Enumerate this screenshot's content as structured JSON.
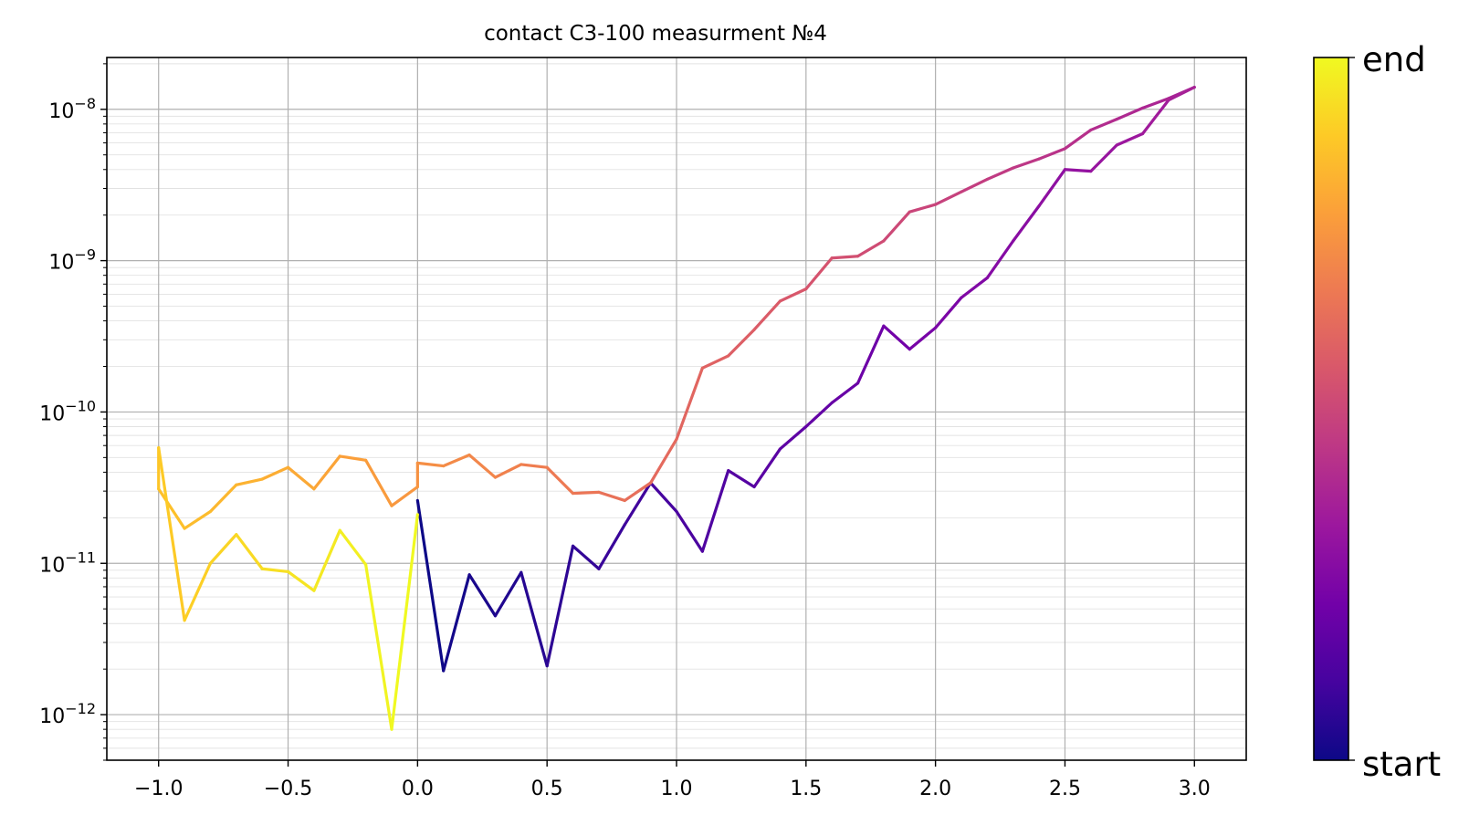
{
  "chart_data": {
    "type": "line",
    "title": "contact C3-100 measurment №4",
    "xlabel": "",
    "ylabel": "",
    "xlim": [
      -1.2,
      3.2
    ],
    "ylim": [
      5e-13,
      2.2e-08
    ],
    "y_scale": "log",
    "grid": "on (major and minor)",
    "x_ticks": [
      -1.0,
      -0.5,
      0.0,
      0.5,
      1.0,
      1.5,
      2.0,
      2.5,
      3.0
    ],
    "x_tick_labels": [
      "−1.0",
      "−0.5",
      "0.0",
      "0.5",
      "1.0",
      "1.5",
      "2.0",
      "2.5",
      "3.0"
    ],
    "y_ticks": [
      {
        "value": 1e-12,
        "base": "10",
        "exp": "−12"
      },
      {
        "value": 1e-11,
        "base": "10",
        "exp": "−11"
      },
      {
        "value": 1e-10,
        "base": "10",
        "exp": "−10"
      },
      {
        "value": 1e-09,
        "base": "10",
        "exp": "−9"
      },
      {
        "value": 1e-08,
        "base": "10",
        "exp": "−8"
      }
    ],
    "colormap": "plasma",
    "colorbar": {
      "top_label": "end",
      "bottom_label": "start",
      "colors": [
        "#0d0887",
        "#46039f",
        "#7201a8",
        "#9c179e",
        "#bd3786",
        "#d8576b",
        "#ed7953",
        "#fb9f3a",
        "#fdca26",
        "#f0f921"
      ]
    },
    "x": [
      0.0,
      0.1,
      0.2,
      0.3,
      0.4,
      0.5,
      0.6,
      0.7,
      0.8,
      0.9,
      1.0,
      1.1,
      1.2,
      1.3,
      1.4,
      1.5,
      1.6,
      1.7,
      1.8,
      1.9,
      2.0,
      2.1,
      2.2,
      2.3,
      2.4,
      2.5,
      2.6,
      2.7,
      2.8,
      2.9,
      3.0,
      2.9,
      2.8,
      2.7,
      2.6,
      2.5,
      2.4,
      2.3,
      2.2,
      2.1,
      2.0,
      1.9,
      1.8,
      1.7,
      1.6,
      1.5,
      1.4,
      1.3,
      1.2,
      1.1,
      1.0,
      0.9,
      0.8,
      0.7,
      0.6,
      0.5,
      0.4,
      0.3,
      0.2,
      0.1,
      0.0,
      0.0,
      -0.1,
      -0.2,
      -0.3,
      -0.4,
      -0.5,
      -0.6,
      -0.7,
      -0.8,
      -0.9,
      -1.0,
      -1.0,
      -0.9,
      -0.8,
      -0.7,
      -0.6,
      -0.5,
      -0.4,
      -0.3,
      -0.2,
      -0.1,
      0.0
    ],
    "y": [
      2.6e-11,
      1.95e-12,
      8.4e-12,
      4.5e-12,
      8.7e-12,
      2.1e-12,
      1.3e-11,
      9.2e-12,
      1.8e-11,
      3.4e-11,
      2.2e-11,
      1.2e-11,
      4.1e-11,
      3.2e-11,
      5.7e-11,
      8e-11,
      1.15e-10,
      1.55e-10,
      3.7e-10,
      2.6e-10,
      3.6e-10,
      5.7e-10,
      7.7e-10,
      1.35e-09,
      2.3e-09,
      4e-09,
      3.9e-09,
      5.8e-09,
      6.9e-09,
      1.15e-08,
      1.4e-08,
      1.18e-08,
      1.02e-08,
      8.6e-09,
      7.3e-09,
      5.5e-09,
      4.7e-09,
      4.1e-09,
      3.45e-09,
      2.85e-09,
      2.35e-09,
      2.1e-09,
      1.35e-09,
      1.07e-09,
      1.04e-09,
      6.5e-10,
      5.4e-10,
      3.5e-10,
      2.35e-10,
      1.95e-10,
      6.6e-11,
      3.4e-11,
      2.6e-11,
      2.95e-11,
      2.9e-11,
      4.3e-11,
      4.5e-11,
      3.7e-11,
      5.2e-11,
      4.4e-11,
      4.6e-11,
      3.2e-11,
      2.4e-11,
      4.8e-11,
      5.1e-11,
      3.1e-11,
      4.3e-11,
      3.6e-11,
      3.3e-11,
      2.2e-11,
      1.7e-11,
      3.1e-11,
      5.8e-11,
      4.2e-12,
      1e-11,
      1.55e-11,
      9.2e-12,
      8.8e-12,
      6.6e-12,
      1.65e-11,
      9.8e-12,
      8e-13,
      2.1e-11
    ]
  }
}
